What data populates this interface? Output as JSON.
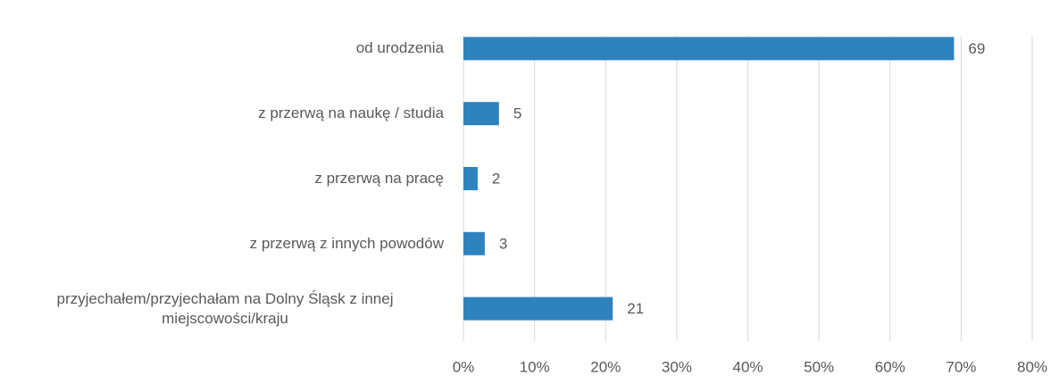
{
  "chart_data": {
    "type": "bar",
    "orientation": "horizontal",
    "categories": [
      "od urodzenia",
      "z przerwą na naukę / studia",
      "z przerwą na pracę",
      "z przerwą z innych powodów",
      "przyjechałem/przyjechałam na Dolny Śląsk z innej miejscowości/kraju"
    ],
    "values": [
      69,
      5,
      2,
      3,
      21
    ],
    "color": "#2e83bf",
    "xlim": [
      0,
      80
    ],
    "xticks": [
      {
        "value": 0,
        "label": "0%"
      },
      {
        "value": 10,
        "label": "10%"
      },
      {
        "value": 20,
        "label": "20%"
      },
      {
        "value": 30,
        "label": "30%"
      },
      {
        "value": 40,
        "label": "40%"
      },
      {
        "value": 50,
        "label": "50%"
      },
      {
        "value": 60,
        "label": "60%"
      },
      {
        "value": 70,
        "label": "70%"
      },
      {
        "value": 80,
        "label": "80%"
      }
    ],
    "grid": true
  }
}
